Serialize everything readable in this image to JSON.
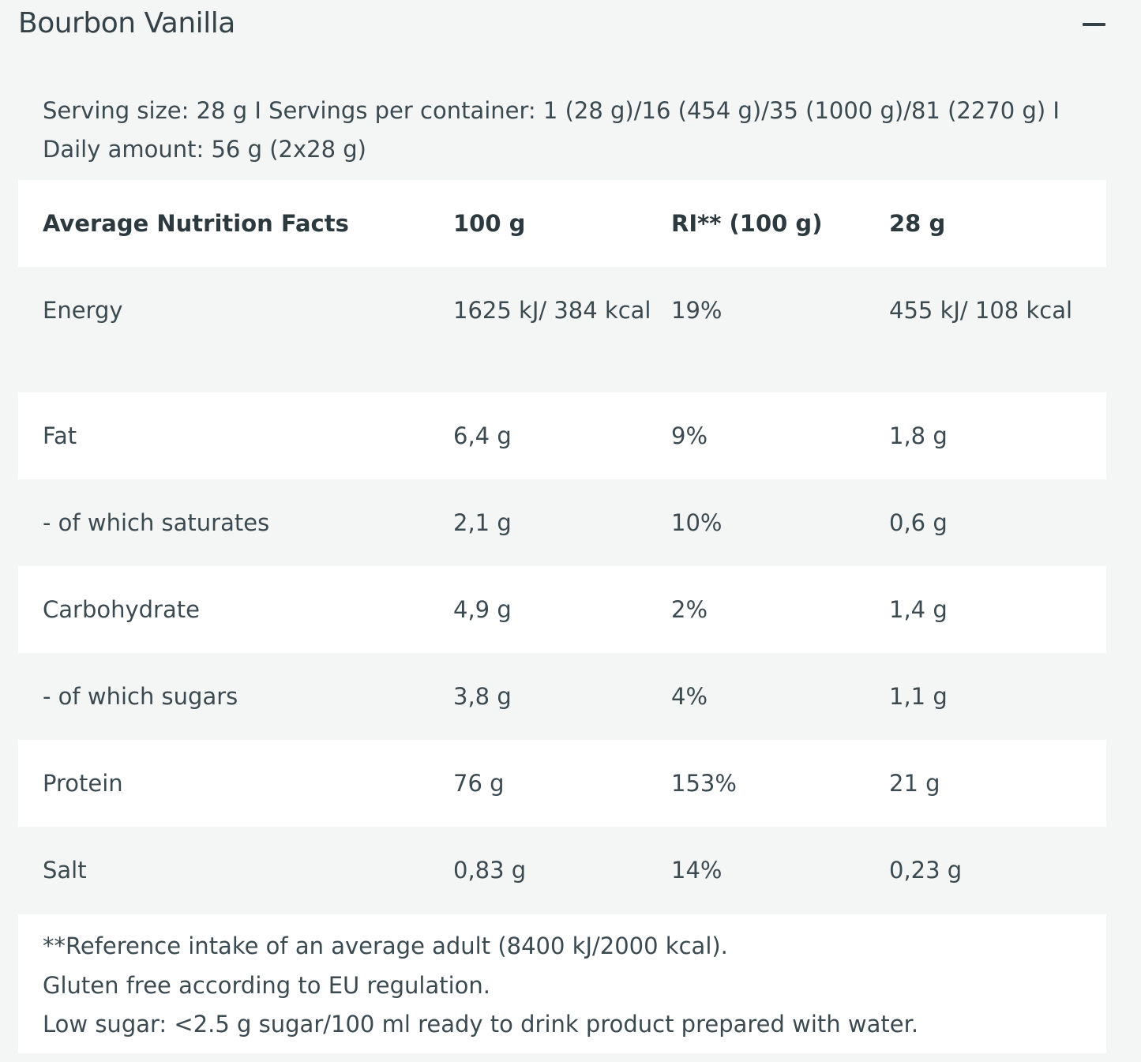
{
  "accordion": {
    "title": "Bourbon Vanilla",
    "collapse_icon": "minus-icon"
  },
  "serving_info": "Serving size: 28 g I Servings per container: 1 (28 g)/16 (454 g)/35 (1000 g)/81 (2270 g) I Daily amount: 56 g (2x28 g)",
  "table": {
    "headers": [
      "Average Nutrition Facts",
      "100 g",
      "RI** (100 g)",
      "28 g"
    ],
    "rows": [
      {
        "label": "Energy",
        "bold": true,
        "per100": "1625 kJ/ 384 kcal",
        "ri": "19%",
        "per28": "455 kJ/ 108 kcal"
      },
      {
        "label": "Fat",
        "bold": true,
        "per100": "6,4 g",
        "ri": "9%",
        "per28": "1,8 g"
      },
      {
        "label": "- of which saturates",
        "bold": false,
        "per100": "2,1 g",
        "ri": "10%",
        "per28": "0,6 g"
      },
      {
        "label": "Carbohydrate",
        "bold": true,
        "per100": "4,9 g",
        "ri": "2%",
        "per28": "1,4 g"
      },
      {
        "label": "- of which sugars",
        "bold": false,
        "per100": "3,8 g",
        "ri": "4%",
        "per28": "1,1 g"
      },
      {
        "label": "Protein",
        "bold": true,
        "per100": "76 g",
        "ri": "153%",
        "per28": "21 g"
      },
      {
        "label": "Salt",
        "bold": true,
        "per100": "0,83 g",
        "ri": "14%",
        "per28": "0,23 g"
      }
    ]
  },
  "footnotes": [
    "**Reference intake of an average adult (8400 kJ/2000 kcal).",
    "Gluten free according to EU regulation.",
    "Low sugar: <2.5 g sugar/100 ml ready to drink product prepared with water."
  ]
}
